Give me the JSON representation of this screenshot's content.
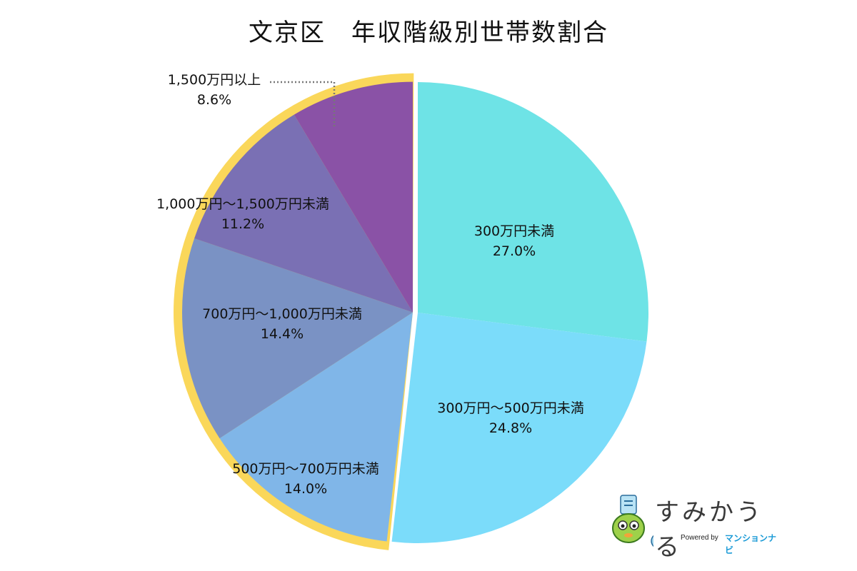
{
  "chart_data": {
    "type": "pie",
    "title": "文京区　年収階級別世帯数割合",
    "slices": [
      {
        "label": "300万円未満",
        "value": 27.0,
        "value_label": "27.0%",
        "color": "#6ee3e6"
      },
      {
        "label": "300万円〜500万円未満",
        "value": 24.8,
        "value_label": "24.8%",
        "color": "#7bdcfa"
      },
      {
        "label": "500万円〜700万円未満",
        "value": 14.0,
        "value_label": "14.0%",
        "color": "#80b6e8"
      },
      {
        "label": "700万円〜1,000万円未満",
        "value": 14.4,
        "value_label": "14.4%",
        "color": "#7a92c4"
      },
      {
        "label": "1,000万円〜1,500万円未満",
        "value": 11.2,
        "value_label": "11.2%",
        "color": "#7a70b4"
      },
      {
        "label": "1,500万円以上",
        "value": 8.6,
        "value_label": "8.6%",
        "color": "#8a52a6"
      }
    ],
    "highlight_color": "#fad75a",
    "leader_color": "#777777"
  },
  "logo": {
    "wordmark": "すみかうる",
    "powered": "Powered by",
    "brand": "マンションナビ"
  }
}
